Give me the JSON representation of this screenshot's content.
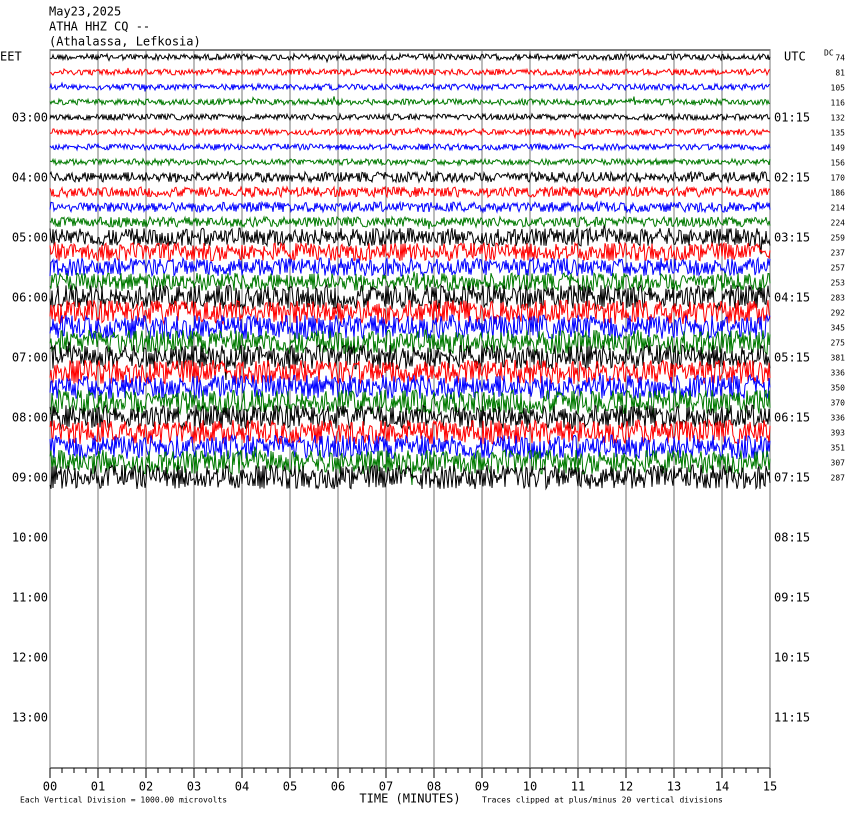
{
  "header": {
    "lines": [
      "May23,2025",
      "ATHA HHZ CQ --",
      "(Athalassa, Lefkosia)"
    ]
  },
  "left_axis": {
    "title": "EET",
    "labels": [
      "03:00",
      "04:00",
      "05:00",
      "06:00",
      "07:00",
      "08:00",
      "09:00",
      "10:00",
      "11:00",
      "12:00",
      "13:00"
    ]
  },
  "right_axis": {
    "title": "UTC",
    "labels": [
      "01:15",
      "02:15",
      "03:15",
      "04:15",
      "05:15",
      "06:15",
      "07:15",
      "08:15",
      "09:15",
      "10:15",
      "11:15"
    ]
  },
  "dc": {
    "title": "DC",
    "values": [
      74,
      81,
      105,
      116,
      132,
      135,
      149,
      156,
      170,
      186,
      214,
      224,
      259,
      237,
      257,
      253,
      283,
      292,
      345,
      275,
      381,
      336,
      350,
      370,
      336,
      393,
      351,
      307,
      287
    ]
  },
  "x_axis": {
    "title": "TIME (MINUTES)",
    "xlim": [
      0,
      15
    ],
    "xticks": [
      {
        "value": 0,
        "label": "00"
      },
      {
        "value": 1,
        "label": "01"
      },
      {
        "value": 2,
        "label": "02"
      },
      {
        "value": 3,
        "label": "03"
      },
      {
        "value": 4,
        "label": "04"
      },
      {
        "value": 5,
        "label": "05"
      },
      {
        "value": 6,
        "label": "06"
      },
      {
        "value": 7,
        "label": "07"
      },
      {
        "value": 8,
        "label": "08"
      },
      {
        "value": 9,
        "label": "09"
      },
      {
        "value": 10,
        "label": "10"
      },
      {
        "value": 11,
        "label": "11"
      },
      {
        "value": 12,
        "label": "12"
      },
      {
        "value": 13,
        "label": "13"
      },
      {
        "value": 14,
        "label": "14"
      },
      {
        "value": 15,
        "label": "15"
      }
    ]
  },
  "footer": {
    "scale": "Each Vertical Division = 1000.00 microvolts",
    "clip": "Traces clipped at plus/minus 20 vertical divisions"
  }
}
